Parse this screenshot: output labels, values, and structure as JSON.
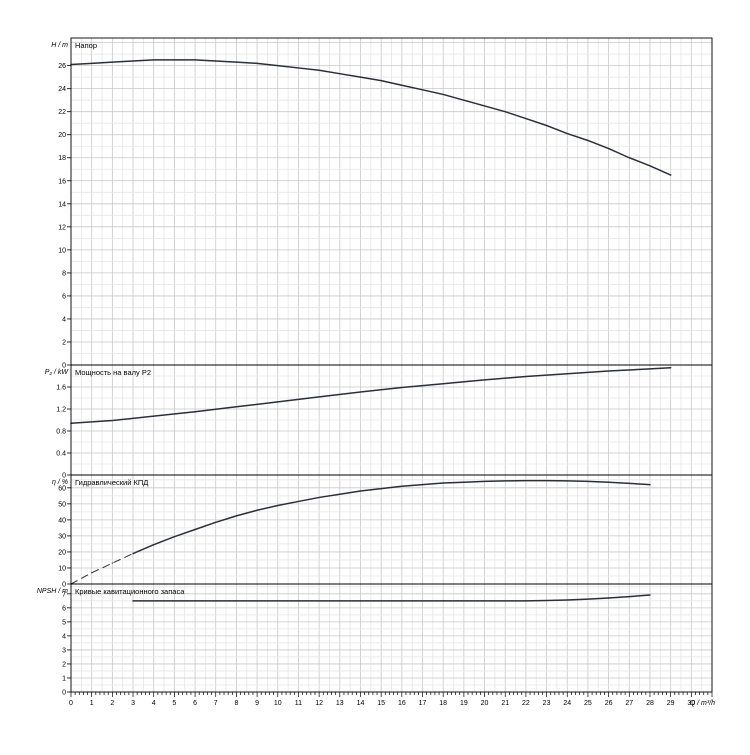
{
  "x_axis": {
    "label": "Q / m³/h",
    "min": 0,
    "max": 31,
    "ticks": [
      "0",
      "1",
      "2",
      "3",
      "4",
      "5",
      "6",
      "7",
      "8",
      "9",
      "10",
      "11",
      "12",
      "13",
      "14",
      "15",
      "16",
      "17",
      "18",
      "19",
      "20",
      "21",
      "22",
      "23",
      "24",
      "25",
      "26",
      "27",
      "28",
      "29",
      "30"
    ]
  },
  "chart_data": [
    {
      "type": "line",
      "title": "Напор",
      "ylabel": "H / m",
      "ylim": [
        0,
        28.4
      ],
      "yticks": [
        0,
        2,
        4,
        6,
        8,
        10,
        12,
        14,
        16,
        18,
        20,
        22,
        24,
        26
      ],
      "grid": true,
      "series": [
        {
          "style": "solid",
          "x": [
            0,
            1,
            2,
            3,
            4,
            5,
            6,
            7,
            8,
            9,
            10,
            11,
            12,
            13,
            14,
            15,
            16,
            17,
            18,
            19,
            20,
            21,
            22,
            23,
            24,
            25,
            26,
            27,
            28,
            29
          ],
          "y": [
            26.1,
            26.2,
            26.3,
            26.4,
            26.5,
            26.5,
            26.5,
            26.4,
            26.3,
            26.2,
            26.0,
            25.8,
            25.6,
            25.3,
            25.0,
            24.7,
            24.3,
            23.9,
            23.5,
            23.0,
            22.5,
            22.0,
            21.4,
            20.8,
            20.1,
            19.5,
            18.8,
            18.0,
            17.3,
            16.5
          ]
        }
      ]
    },
    {
      "type": "line",
      "title": "Мощность на валу P2",
      "ylabel": "P₂ / kW",
      "ylim": [
        0,
        2.0
      ],
      "yticks": [
        "0",
        "0.4",
        "0.8",
        "1.2",
        "1.6"
      ],
      "grid": true,
      "series": [
        {
          "style": "solid",
          "x": [
            0,
            2,
            4,
            6,
            8,
            10,
            12,
            14,
            16,
            18,
            20,
            22,
            24,
            26,
            28,
            29
          ],
          "y": [
            0.94,
            0.99,
            1.07,
            1.15,
            1.24,
            1.33,
            1.42,
            1.51,
            1.59,
            1.66,
            1.73,
            1.79,
            1.84,
            1.89,
            1.93,
            1.95
          ]
        }
      ]
    },
    {
      "type": "line",
      "title": "Гидравлический КПД",
      "ylabel": "η / %",
      "ylim": [
        0,
        68
      ],
      "yticks": [
        0,
        10,
        20,
        30,
        40,
        50,
        60
      ],
      "grid": true,
      "series": [
        {
          "style": "dashed",
          "x": [
            0,
            1,
            2,
            3
          ],
          "y": [
            0,
            7,
            13,
            19
          ]
        },
        {
          "style": "solid",
          "x": [
            3,
            4,
            5,
            6,
            7,
            8,
            9,
            10,
            11,
            12,
            13,
            14,
            15,
            16,
            17,
            18,
            19,
            20,
            21,
            22,
            23,
            24,
            25,
            26,
            27,
            28
          ],
          "y": [
            19,
            24.5,
            29.5,
            34,
            38.5,
            42.5,
            46,
            49,
            51.5,
            54,
            56,
            58,
            59.5,
            61,
            62,
            63,
            63.5,
            64,
            64.3,
            64.5,
            64.5,
            64.3,
            64,
            63.5,
            62.8,
            62
          ]
        }
      ]
    },
    {
      "type": "line",
      "title": "Кривые кавитационного запаса",
      "ylabel": "NPSH / m",
      "ylim": [
        0,
        7.7
      ],
      "yticks": [
        0,
        1,
        2,
        3,
        4,
        5,
        6,
        7
      ],
      "grid": true,
      "series": [
        {
          "style": "solid",
          "x": [
            3,
            6,
            10,
            14,
            18,
            22,
            23,
            24,
            25,
            26,
            27,
            28
          ],
          "y": [
            6.5,
            6.5,
            6.5,
            6.5,
            6.5,
            6.5,
            6.52,
            6.56,
            6.62,
            6.7,
            6.8,
            6.92
          ]
        }
      ]
    }
  ]
}
